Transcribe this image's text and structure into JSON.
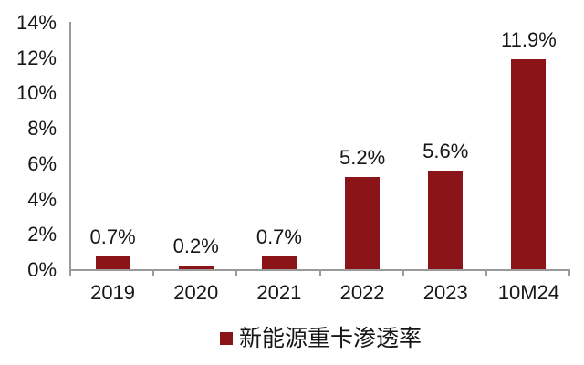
{
  "chart_data": {
    "type": "bar",
    "title": "",
    "xlabel": "",
    "ylabel": "",
    "categories": [
      "2019",
      "2020",
      "2021",
      "2022",
      "2023",
      "10M24"
    ],
    "values": [
      0.7,
      0.2,
      0.7,
      5.2,
      5.6,
      11.9
    ],
    "value_labels": [
      "0.7%",
      "0.2%",
      "0.7%",
      "5.2%",
      "5.6%",
      "11.9%"
    ],
    "ylim": [
      0,
      14
    ],
    "ytick_step": 2,
    "ytick_labels": [
      "14%",
      "12%",
      "10%",
      "8%",
      "6%",
      "4%",
      "2%",
      "0%"
    ],
    "grid": false,
    "legend": {
      "position": "bottom-center",
      "entries": [
        {
          "label": "新能源重卡渗透率",
          "marker": "square"
        }
      ]
    },
    "bar_color": "#8B1418",
    "axis_color": "#9A9A9A",
    "text_color": "#161616",
    "background_color": "#FFFFFF"
  }
}
